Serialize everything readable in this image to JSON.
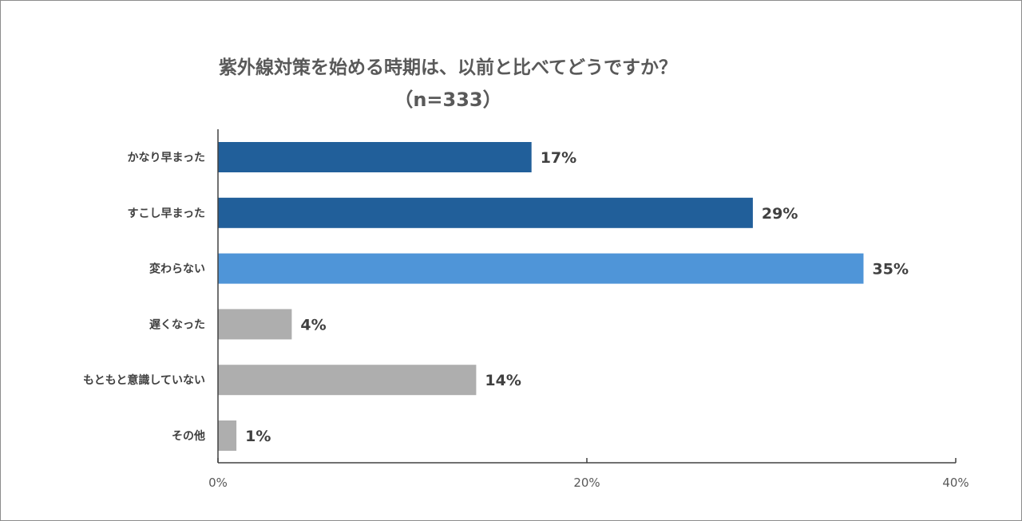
{
  "chart_data": {
    "type": "bar",
    "orientation": "horizontal",
    "title": "紫外線対策を始める時期は、以前と比べてどうですか？",
    "subtitle": "（n=333）",
    "categories": [
      "かなり早まった",
      "すこし早まった",
      "変わらない",
      "遅くなった",
      "もともと意識していない",
      "その他"
    ],
    "values": [
      17,
      29,
      35,
      4,
      14,
      1
    ],
    "value_labels": [
      "17%",
      "29%",
      "35%",
      "4%",
      "14%",
      "1%"
    ],
    "bar_colors": [
      "#215F9A",
      "#215F9A",
      "#4F95D8",
      "#AEAEAE",
      "#AEAEAE",
      "#AEAEAE"
    ],
    "xlim": [
      0,
      40
    ],
    "xticks": [
      0,
      20,
      40
    ],
    "xtick_labels": [
      "0%",
      "20%",
      "40%"
    ],
    "grid": false,
    "legend": "none"
  }
}
